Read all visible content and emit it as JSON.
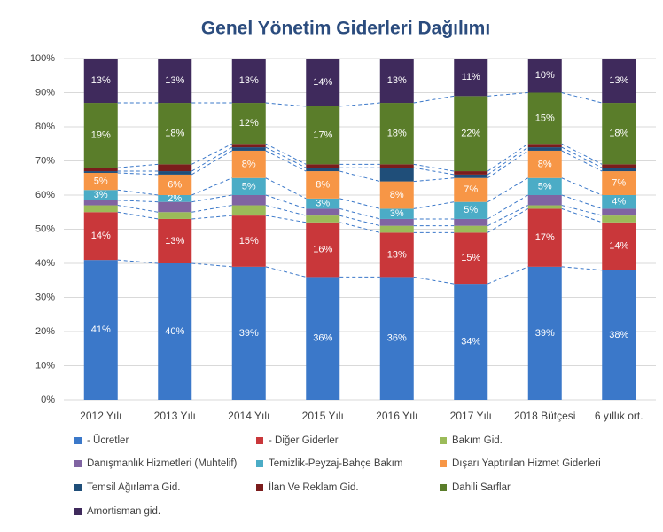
{
  "chart_data": {
    "type": "stacked_bar_100",
    "title": "Genel Yönetim Giderleri Dağılımı",
    "categories": [
      "2012 Yılı",
      "2013 Yılı",
      "2014 Yılı",
      "2015 Yılı",
      "2016 Yılı",
      "2017 Yılı",
      "2018 Bütçesi",
      "6 yıllık ort."
    ],
    "ylim": [
      0,
      100
    ],
    "yticks": [
      {
        "value": 0,
        "label": "0%"
      },
      {
        "value": 10,
        "label": "10%"
      },
      {
        "value": 20,
        "label": "20%"
      },
      {
        "value": 30,
        "label": "30%"
      },
      {
        "value": 40,
        "label": "40%"
      },
      {
        "value": 50,
        "label": "50%"
      },
      {
        "value": 60,
        "label": "60%"
      },
      {
        "value": 70,
        "label": "70%"
      },
      {
        "value": 80,
        "label": "80%"
      },
      {
        "value": 90,
        "label": "90%"
      },
      {
        "value": 100,
        "label": "100%"
      }
    ],
    "grid": true,
    "series": [
      {
        "name": "- Ücretler",
        "color": "#3b78c9",
        "values": [
          41,
          40,
          39,
          36,
          36,
          34,
          39,
          38
        ],
        "value_labels": [
          "41%",
          "40%",
          "39%",
          "36%",
          "36%",
          "34%",
          "39%",
          "38%"
        ]
      },
      {
        "name": "- Diğer Giderler",
        "color": "#c9373a",
        "values": [
          14,
          13,
          15,
          16,
          13,
          15,
          17,
          14
        ],
        "value_labels": [
          "14%",
          "13%",
          "15%",
          "16%",
          "13%",
          "15%",
          "17%",
          "14%"
        ]
      },
      {
        "name": "Bakım Gid.",
        "color": "#9bbb59",
        "values": [
          2,
          2,
          3,
          2,
          2,
          2,
          1,
          2
        ]
      },
      {
        "name": "Danışmanlık Hizmetleri (Muhtelif)",
        "color": "#8064a2",
        "values": [
          1.5,
          3,
          3,
          2,
          2,
          2,
          3,
          2
        ]
      },
      {
        "name": "Temizlik-Peyzaj-Bahçe Bakım",
        "color": "#4bacc6",
        "values": [
          3,
          2,
          5,
          3,
          3,
          5,
          5,
          4
        ],
        "value_labels": [
          "3%",
          "2%",
          "5%",
          "3%",
          "3%",
          "5%",
          "5%",
          "4%"
        ]
      },
      {
        "name": "Dışarı Yaptırılan Hizmet Giderleri",
        "color": "#f79646",
        "values": [
          5,
          6,
          8,
          8,
          8,
          7,
          8,
          7
        ],
        "value_labels": [
          "5%",
          "6%",
          "8%",
          "8%",
          "8%",
          "7%",
          "8%",
          "7%"
        ]
      },
      {
        "name": "Temsil Ağırlama Gid.",
        "color": "#1f4e79",
        "values": [
          0.5,
          1,
          1,
          1,
          4,
          1,
          1,
          1
        ]
      },
      {
        "name": "İlan Ve Reklam Gid.",
        "color": "#7b1c1c",
        "values": [
          1,
          2,
          1,
          1,
          1,
          1,
          1,
          1
        ]
      },
      {
        "name": "Dahili Sarflar",
        "color": "#5a7d2a",
        "values": [
          19,
          18,
          12,
          17,
          18,
          22,
          15,
          18
        ],
        "value_labels": [
          "19%",
          "18%",
          "12%",
          "17%",
          "18%",
          "22%",
          "15%",
          "18%"
        ]
      },
      {
        "name": "Amortisman gid.",
        "color": "#3f2a5c",
        "values": [
          13,
          13,
          13,
          14,
          13,
          11,
          10,
          13
        ],
        "value_labels": [
          "13%",
          "13%",
          "13%",
          "14%",
          "13%",
          "11%",
          "10%",
          "13%"
        ]
      }
    ]
  }
}
